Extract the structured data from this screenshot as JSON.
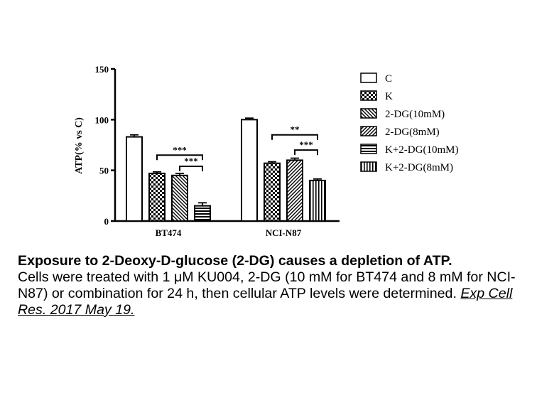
{
  "chart_data": {
    "type": "bar",
    "ylabel": "ATP(% vs C)",
    "ylim": [
      0,
      150
    ],
    "yticks": [
      "0",
      "50",
      "100",
      "150"
    ],
    "groups": [
      "BT474",
      "NCI-N87"
    ],
    "legend_position": "right",
    "series": [
      {
        "name": "C",
        "pattern": "empty"
      },
      {
        "name": "K",
        "pattern": "checker"
      },
      {
        "name": "2-DG(10mM)",
        "pattern": "diag-back"
      },
      {
        "name": "2-DG(8mM)",
        "pattern": "diag-forward"
      },
      {
        "name": "K+2-DG(10mM)",
        "pattern": "horizontal"
      },
      {
        "name": "K+2-DG(8mM)",
        "pattern": "vertical"
      }
    ],
    "bars": [
      {
        "group": "BT474",
        "series": "C",
        "value": 83,
        "error": 2
      },
      {
        "group": "BT474",
        "series": "K",
        "value": 47,
        "error": 1.5
      },
      {
        "group": "BT474",
        "series": "2-DG(10mM)",
        "value": 45,
        "error": 2
      },
      {
        "group": "BT474",
        "series": "K+2-DG(10mM)",
        "value": 15,
        "error": 3
      },
      {
        "group": "NCI-N87",
        "series": "C",
        "value": 100,
        "error": 1.5
      },
      {
        "group": "NCI-N87",
        "series": "K",
        "value": 57,
        "error": 1.5
      },
      {
        "group": "NCI-N87",
        "series": "2-DG(8mM)",
        "value": 60,
        "error": 2
      },
      {
        "group": "NCI-N87",
        "series": "K+2-DG(8mM)",
        "value": 40,
        "error": 1.5
      }
    ],
    "significance": [
      {
        "group": "BT474",
        "from": 1,
        "to": 3,
        "label": "***",
        "y": 65
      },
      {
        "group": "BT474",
        "from": 2,
        "to": 3,
        "label": "***",
        "y": 54
      },
      {
        "group": "NCI-N87",
        "from": 1,
        "to": 3,
        "label": "**",
        "y": 85
      },
      {
        "group": "NCI-N87",
        "from": 2,
        "to": 3,
        "label": "***",
        "y": 70
      }
    ]
  },
  "caption": {
    "title": "Exposure to 2-Deoxy-D-glucose (2-DG) causes a depletion of ATP.",
    "body": "Cells were treated with 1 μM KU004, 2-DG (10 mM for BT474 and 8 mM for NCI-N87) or combination for 24 h, then cellular ATP levels were determined.",
    "reference": "Exp Cell Res. 2017 May 19."
  }
}
